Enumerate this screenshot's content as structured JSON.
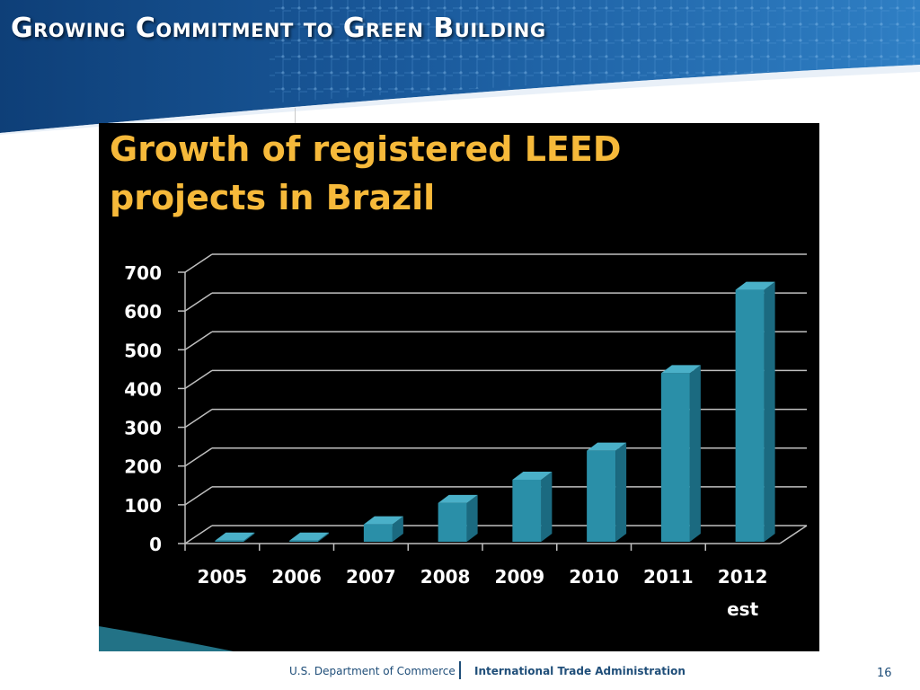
{
  "slide": {
    "title": "Growing Commitment to Green Building",
    "page_number": "16"
  },
  "footer": {
    "department": "U.S. Department of Commerce",
    "agency": "International Trade Administration"
  },
  "colors": {
    "bar_front": "#2a8fa8",
    "bar_side": "#1b6a80",
    "bar_top": "#4ab0c8",
    "title_text": "#f6b93a",
    "chart_background": "#000000",
    "header_blue": "#1a5a9c"
  },
  "chart_data": {
    "type": "bar",
    "title": "Growth of registered  LEED projects in Brazil",
    "categories": [
      "2005",
      "2006",
      "2007",
      "2008",
      "2009",
      "2010",
      "2011",
      "2012"
    ],
    "category_sublabels": [
      "",
      "",
      "",
      "",
      "",
      "",
      "",
      "est"
    ],
    "values": [
      3,
      3,
      45,
      100,
      160,
      235,
      435,
      650
    ],
    "y_ticks": [
      0,
      100,
      200,
      300,
      400,
      500,
      600,
      700
    ],
    "ylim": [
      0,
      700
    ],
    "grid": true,
    "style": "3d-bar"
  }
}
